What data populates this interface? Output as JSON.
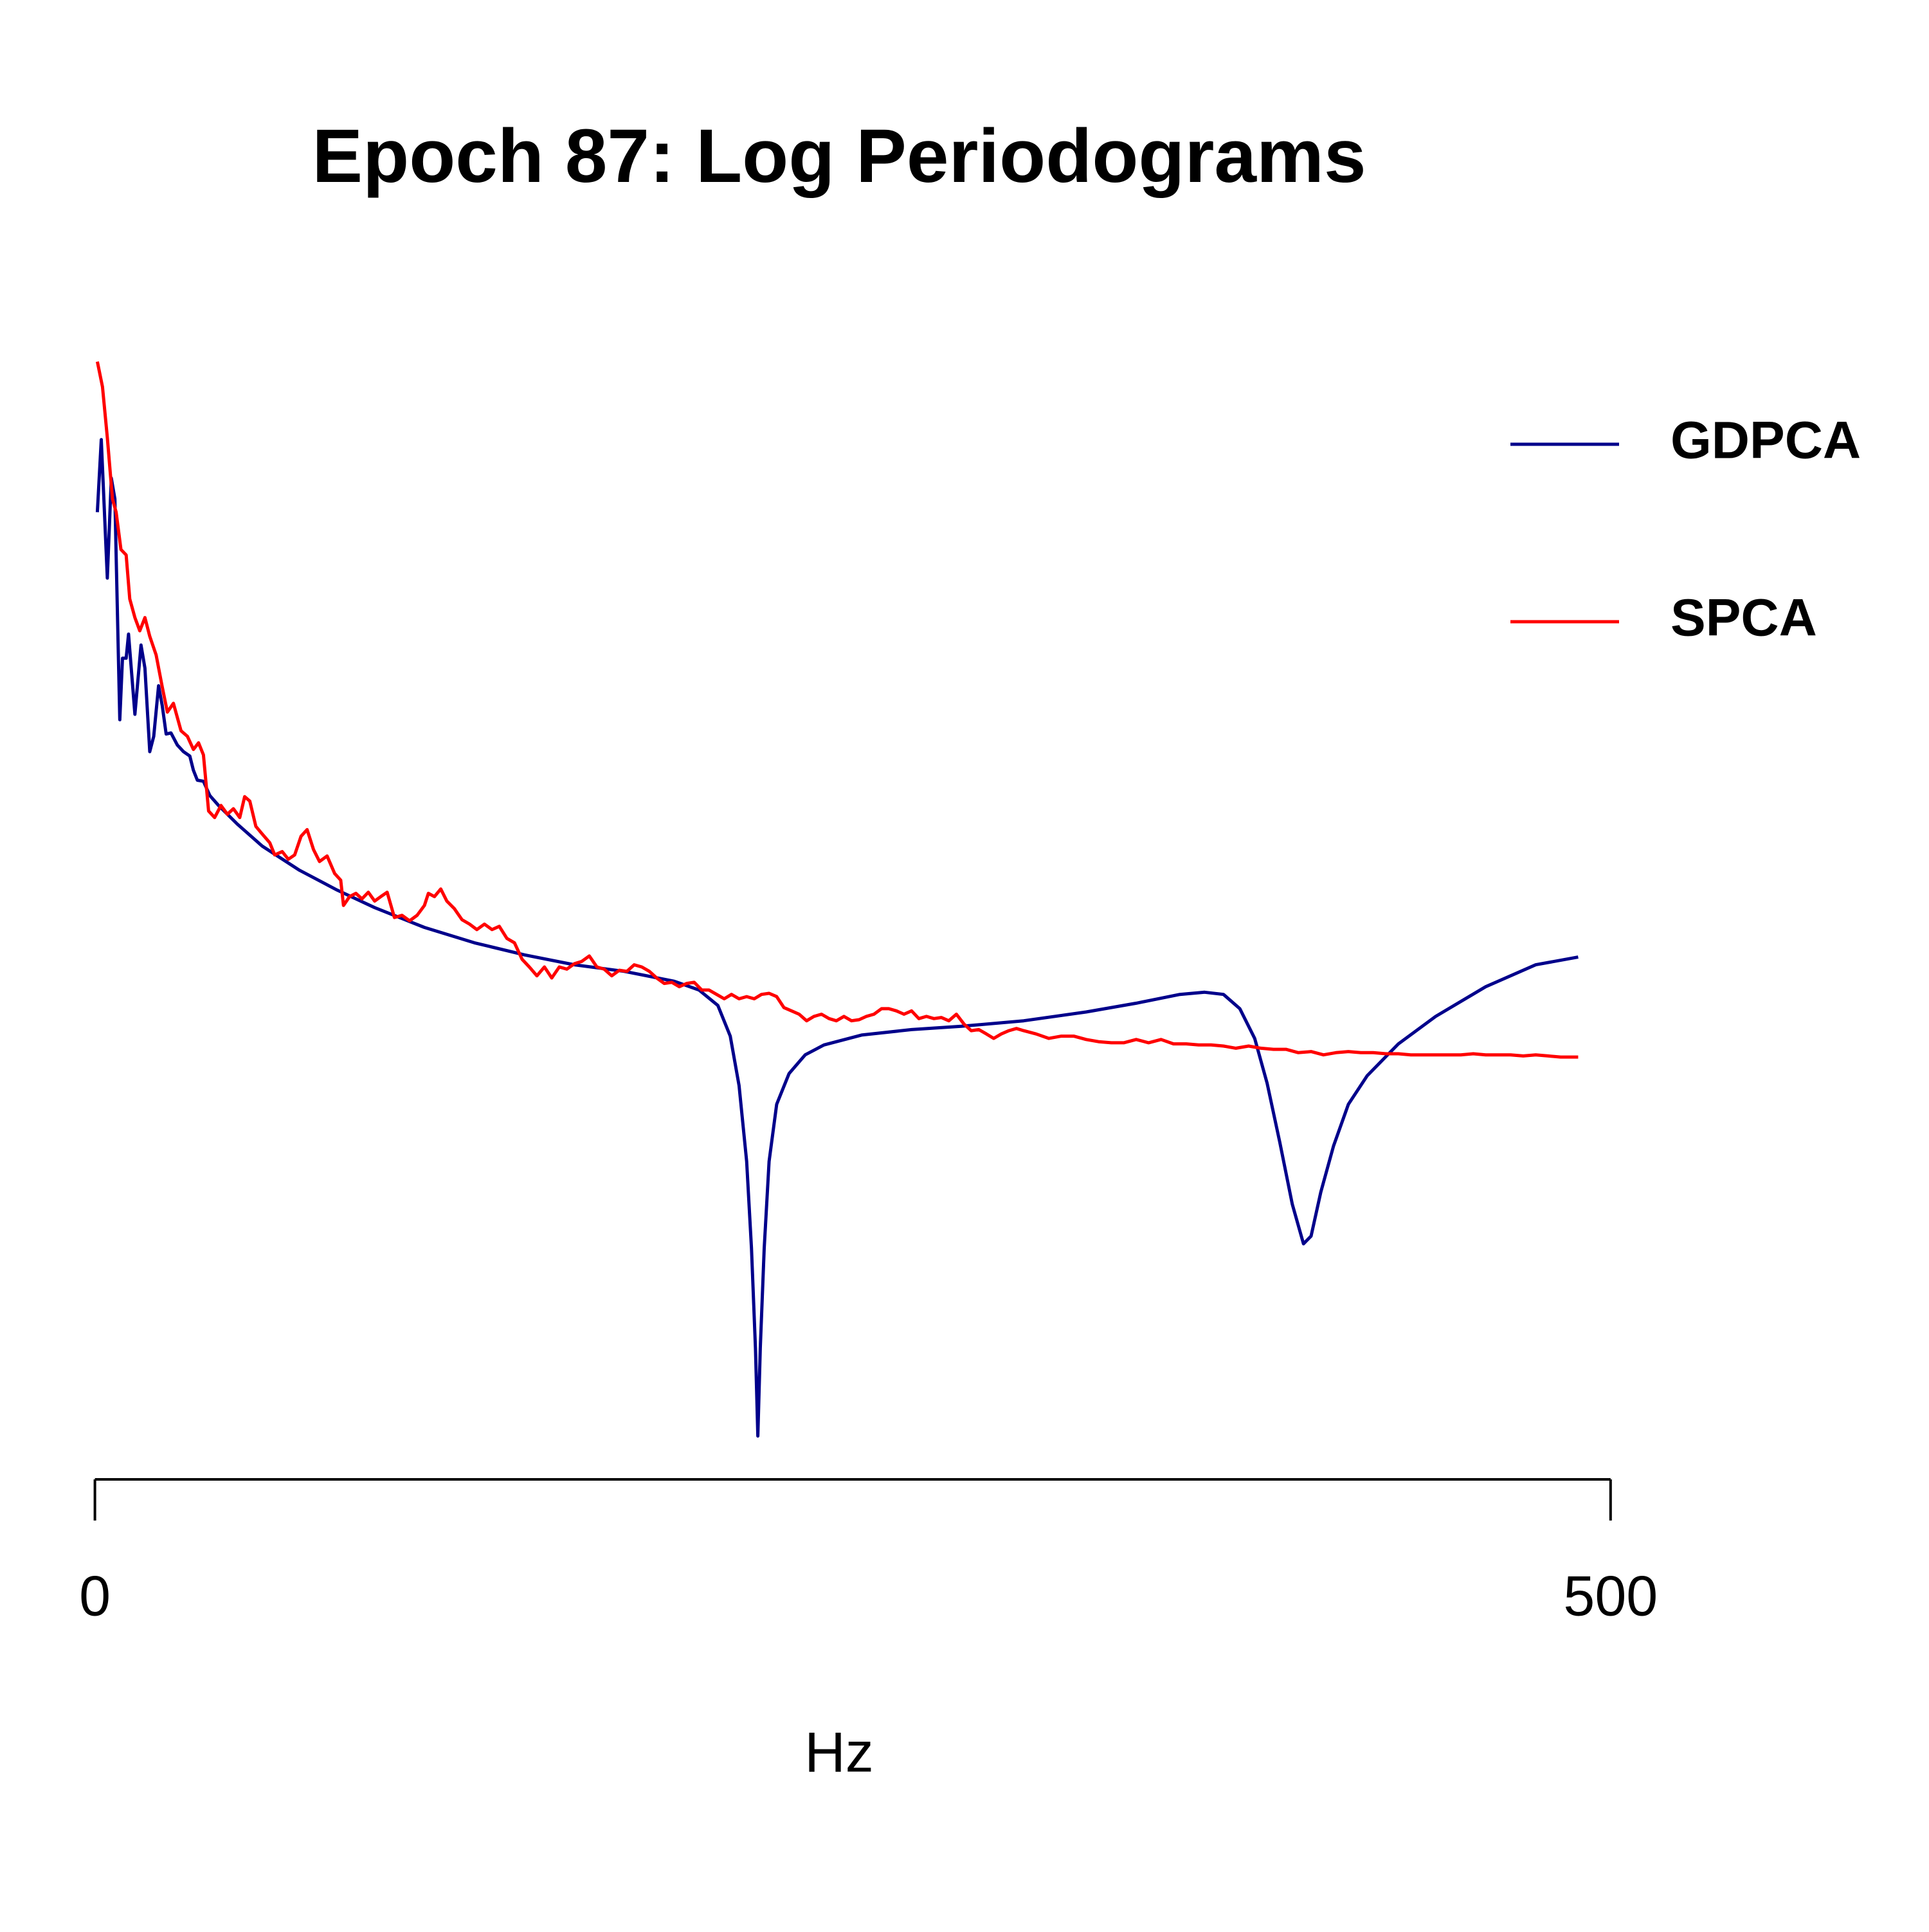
{
  "chart_data": {
    "type": "line",
    "title": "Epoch 87: Log Periodograms",
    "x_label": "Hz",
    "xlim": [
      0,
      500
    ],
    "xticks": [
      0,
      500
    ],
    "ylim": [
      0,
      100
    ],
    "legend": "topright",
    "series": [
      {
        "name": "GDPCA",
        "color": "#00008b",
        "x": [
          0.8,
          2.1,
          4.1,
          5.4,
          6.6,
          8.2,
          9.1,
          10.3,
          11.1,
          13.2,
          15.2,
          16.5,
          18.1,
          19.4,
          21.0,
          22.2,
          23.5,
          25.1,
          27.2,
          29.2,
          31.3,
          32.5,
          33.8,
          35.8,
          37.9,
          40.8,
          47.0,
          55.2,
          67.5,
          79.9,
          92.3,
          108.7,
          125.2,
          141.7,
          158.2,
          174.6,
          191.1,
          199.3,
          205.5,
          209.6,
          212.5,
          215.0,
          216.6,
          217.9,
          218.7,
          219.5,
          220.8,
          222.4,
          224.9,
          229.0,
          234.3,
          240.5,
          252.9,
          269.4,
          285.8,
          306.4,
          327.0,
          343.5,
          357.9,
          366.1,
          372.3,
          377.7,
          382.6,
          386.7,
          390.9,
          395.0,
          398.7,
          401.2,
          404.4,
          408.6,
          413.5,
          419.7,
          430.0,
          442.3,
          458.8,
          475.3,
          489.3
        ],
        "values": [
          85.2,
          91.8,
          79.2,
          88.3,
          86.4,
          66.3,
          71.9,
          71.9,
          74.1,
          66.8,
          73.1,
          71.0,
          63.4,
          64.8,
          69.4,
          67.6,
          65.0,
          65.1,
          64.0,
          63.4,
          63.0,
          61.7,
          60.8,
          60.7,
          59.4,
          58.5,
          56.8,
          54.8,
          52.6,
          50.8,
          49.2,
          47.4,
          46.0,
          44.9,
          44.0,
          43.4,
          42.5,
          41.7,
          40.3,
          37.5,
          33.0,
          26.1,
          18.2,
          9.1,
          1.1,
          9.1,
          18.2,
          26.1,
          31.3,
          34.1,
          35.8,
          36.7,
          37.6,
          38.1,
          38.4,
          38.9,
          39.7,
          40.5,
          41.3,
          41.5,
          41.3,
          40.0,
          37.3,
          33.2,
          27.8,
          22.2,
          18.6,
          19.3,
          23.3,
          27.5,
          31.3,
          33.9,
          36.8,
          39.3,
          42.0,
          44.0,
          44.7
        ]
      },
      {
        "name": "SPCA",
        "color": "#ff0000",
        "x": [
          0.8,
          2.5,
          4.1,
          5.8,
          7.0,
          8.6,
          10.3,
          11.5,
          13.2,
          14.8,
          16.5,
          18.1,
          20.2,
          22.2,
          23.9,
          25.9,
          28.4,
          30.5,
          32.5,
          34.2,
          35.8,
          37.5,
          39.5,
          41.6,
          43.7,
          45.7,
          47.8,
          49.4,
          51.1,
          53.1,
          55.2,
          57.7,
          59.3,
          61.8,
          63.8,
          65.9,
          68.0,
          70.0,
          72.1,
          74.1,
          76.6,
          79.1,
          81.1,
          82.0,
          84.0,
          86.1,
          88.1,
          90.2,
          92.3,
          94.3,
          96.4,
          98.8,
          101.3,
          103.8,
          106.3,
          108.7,
          110.0,
          112.0,
          114.1,
          116.1,
          118.6,
          121.1,
          123.6,
          126.0,
          128.5,
          131.0,
          133.4,
          135.9,
          138.4,
          140.9,
          143.3,
          145.8,
          148.3,
          150.7,
          153.2,
          155.7,
          158.2,
          160.6,
          163.1,
          165.6,
          168.0,
          170.5,
          173.0,
          175.5,
          177.9,
          180.4,
          182.9,
          185.3,
          187.8,
          190.3,
          192.8,
          195.2,
          197.7,
          200.2,
          202.6,
          205.1,
          207.6,
          210.0,
          212.5,
          215.0,
          217.5,
          219.9,
          222.4,
          224.9,
          227.3,
          229.8,
          232.3,
          234.8,
          237.2,
          239.7,
          242.2,
          244.6,
          247.1,
          249.6,
          252.1,
          254.5,
          257.0,
          259.5,
          261.9,
          264.4,
          266.9,
          269.4,
          271.8,
          274.3,
          276.8,
          279.2,
          281.7,
          284.2,
          286.7,
          289.1,
          291.6,
          294.1,
          296.5,
          299.0,
          301.5,
          304.0,
          306.4,
          310.5,
          314.7,
          318.8,
          322.9,
          327.0,
          331.1,
          335.3,
          339.4,
          343.5,
          347.6,
          351.7,
          355.8,
          360.0,
          364.1,
          368.2,
          372.3,
          376.4,
          380.6,
          384.7,
          388.8,
          392.9,
          397.0,
          401.2,
          405.3,
          409.4,
          413.5,
          417.6,
          421.7,
          425.9,
          430.0,
          434.1,
          438.2,
          442.3,
          446.5,
          450.6,
          454.7,
          458.8,
          462.9,
          467.0,
          471.2,
          475.3,
          479.4,
          483.5,
          489.3
        ],
        "values": [
          98.9,
          96.6,
          92.0,
          86.4,
          85.2,
          81.8,
          81.3,
          77.3,
          75.6,
          74.4,
          75.6,
          73.9,
          72.2,
          69.3,
          67.0,
          67.8,
          65.3,
          64.8,
          63.6,
          64.2,
          63.1,
          58.0,
          57.4,
          58.5,
          57.7,
          58.2,
          57.4,
          59.3,
          58.9,
          56.6,
          55.9,
          55.1,
          54.0,
          54.3,
          53.6,
          54.0,
          55.7,
          56.3,
          54.5,
          53.4,
          53.9,
          52.3,
          51.7,
          49.4,
          50.2,
          50.5,
          50.0,
          50.6,
          49.8,
          50.2,
          50.6,
          48.3,
          48.5,
          48.0,
          48.5,
          49.4,
          50.5,
          50.2,
          50.9,
          49.8,
          49.1,
          48.1,
          47.7,
          47.2,
          47.7,
          47.2,
          47.5,
          46.4,
          46.0,
          44.5,
          43.8,
          43.0,
          43.8,
          42.8,
          43.8,
          43.6,
          44.1,
          44.3,
          44.8,
          43.8,
          43.6,
          43.0,
          43.5,
          43.4,
          44.0,
          43.8,
          43.4,
          42.8,
          42.3,
          42.4,
          42.0,
          42.3,
          42.4,
          41.7,
          41.7,
          41.3,
          40.9,
          41.3,
          40.9,
          41.1,
          40.9,
          41.3,
          41.4,
          41.1,
          40.1,
          39.8,
          39.5,
          38.9,
          39.3,
          39.5,
          39.1,
          38.9,
          39.3,
          38.9,
          39.0,
          39.3,
          39.5,
          40.0,
          40.0,
          39.8,
          39.5,
          39.8,
          39.1,
          39.3,
          39.1,
          39.2,
          38.9,
          39.5,
          38.6,
          38.0,
          38.1,
          37.7,
          37.3,
          37.7,
          38.0,
          38.2,
          38.0,
          37.7,
          37.3,
          37.5,
          37.5,
          37.2,
          37.0,
          36.9,
          36.9,
          37.2,
          36.9,
          37.2,
          36.8,
          36.8,
          36.7,
          36.7,
          36.6,
          36.4,
          36.6,
          36.4,
          36.3,
          36.3,
          36.0,
          36.1,
          35.8,
          36.0,
          36.1,
          36.0,
          36.0,
          35.9,
          35.9,
          35.8,
          35.8,
          35.8,
          35.8,
          35.8,
          35.9,
          35.8,
          35.8,
          35.8,
          35.7,
          35.8,
          35.7,
          35.6,
          35.6
        ]
      }
    ]
  }
}
